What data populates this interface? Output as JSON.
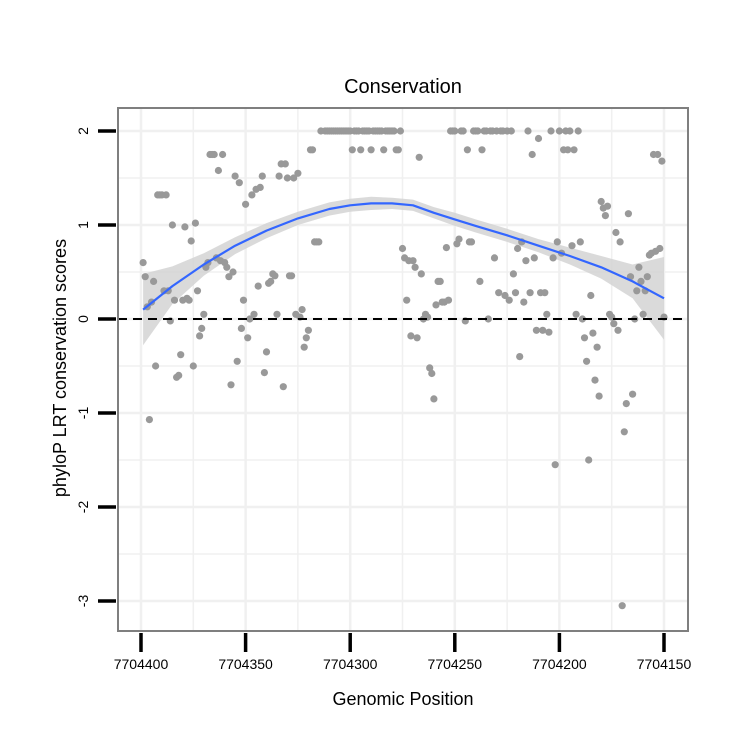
{
  "chart_data": {
    "type": "scatter",
    "title": "Conservation",
    "xlabel": "Genomic Position",
    "ylabel": "phyloP LRT conservation scores",
    "xlim": [
      7704410,
      7704145
    ],
    "x_reversed": true,
    "ylim": [
      -3.3,
      2.2
    ],
    "x_ticks": [
      7704400,
      7704350,
      7704300,
      7704250,
      7704200,
      7704150
    ],
    "x_tick_labels": [
      "7704400",
      "7704350",
      "7704300",
      "7704250",
      "7704200",
      "7704150"
    ],
    "y_ticks": [
      -3,
      -2,
      -1,
      0,
      1,
      2
    ],
    "y_tick_labels": [
      "-3",
      "-2",
      "-1",
      "0",
      "1",
      "2"
    ],
    "grid": true,
    "reference_line": {
      "y": 0,
      "style": "dashed",
      "color": "#000000"
    },
    "colors": {
      "points": "#999999",
      "smooth": "#3366FF",
      "band": "#D3D3D3",
      "grid": "#F0F0F0",
      "border": "#7F7F7F"
    },
    "smooth": {
      "x": [
        7704399,
        7704385,
        7704370,
        7704355,
        7704340,
        7704325,
        7704310,
        7704300,
        7704290,
        7704280,
        7704270,
        7704260,
        7704250,
        7704240,
        7704225,
        7704210,
        7704195,
        7704180,
        7704165,
        7704150
      ],
      "y": [
        0.1,
        0.35,
        0.58,
        0.78,
        0.94,
        1.07,
        1.17,
        1.21,
        1.23,
        1.23,
        1.21,
        1.13,
        1.06,
        0.99,
        0.89,
        0.78,
        0.67,
        0.55,
        0.4,
        0.22
      ],
      "lower": [
        -0.28,
        0.16,
        0.46,
        0.69,
        0.86,
        1.0,
        1.1,
        1.14,
        1.16,
        1.17,
        1.15,
        1.07,
        0.99,
        0.92,
        0.82,
        0.71,
        0.58,
        0.43,
        0.22,
        -0.22
      ],
      "upper": [
        0.48,
        0.56,
        0.7,
        0.87,
        1.02,
        1.14,
        1.24,
        1.28,
        1.3,
        1.29,
        1.27,
        1.19,
        1.13,
        1.06,
        0.96,
        0.85,
        0.76,
        0.67,
        0.58,
        0.66
      ]
    },
    "points": [
      [
        7704399,
        0.6
      ],
      [
        7704398,
        0.45
      ],
      [
        7704397,
        0.13
      ],
      [
        7704396,
        -1.07
      ],
      [
        7704395,
        0.18
      ],
      [
        7704394,
        0.4
      ],
      [
        7704393,
        -0.5
      ],
      [
        7704392,
        1.32
      ],
      [
        7704391,
        1.32
      ],
      [
        7704390,
        1.32
      ],
      [
        7704389,
        0.3
      ],
      [
        7704388,
        1.32
      ],
      [
        7704387,
        0.3
      ],
      [
        7704386,
        -0.02
      ],
      [
        7704385,
        1.0
      ],
      [
        7704384,
        0.2
      ],
      [
        7704383,
        -0.62
      ],
      [
        7704382,
        -0.6
      ],
      [
        7704381,
        -0.38
      ],
      [
        7704380,
        0.2
      ],
      [
        7704379,
        0.98
      ],
      [
        7704378,
        0.22
      ],
      [
        7704377,
        0.2
      ],
      [
        7704376,
        0.83
      ],
      [
        7704375,
        -0.5
      ],
      [
        7704374,
        1.02
      ],
      [
        7704373,
        0.3
      ],
      [
        7704372,
        -0.18
      ],
      [
        7704371,
        -0.1
      ],
      [
        7704370,
        0.05
      ],
      [
        7704369,
        0.55
      ],
      [
        7704368,
        0.6
      ],
      [
        7704367,
        1.75
      ],
      [
        7704366,
        1.75
      ],
      [
        7704365,
        1.75
      ],
      [
        7704364,
        0.65
      ],
      [
        7704363,
        1.58
      ],
      [
        7704362,
        0.62
      ],
      [
        7704361,
        1.75
      ],
      [
        7704360,
        0.6
      ],
      [
        7704359,
        0.55
      ],
      [
        7704358,
        0.45
      ],
      [
        7704357,
        -0.7
      ],
      [
        7704356,
        0.5
      ],
      [
        7704355,
        1.52
      ],
      [
        7704354,
        -0.45
      ],
      [
        7704353,
        1.45
      ],
      [
        7704352,
        -0.1
      ],
      [
        7704351,
        0.2
      ],
      [
        7704350,
        1.22
      ],
      [
        7704349,
        -0.2
      ],
      [
        7704348,
        0.0
      ],
      [
        7704347,
        1.32
      ],
      [
        7704346,
        0.05
      ],
      [
        7704345,
        1.38
      ],
      [
        7704344,
        0.35
      ],
      [
        7704343,
        1.4
      ],
      [
        7704342,
        1.52
      ],
      [
        7704341,
        -0.57
      ],
      [
        7704340,
        -0.35
      ],
      [
        7704339,
        0.38
      ],
      [
        7704338,
        0.4
      ],
      [
        7704337,
        0.48
      ],
      [
        7704336,
        0.46
      ],
      [
        7704335,
        0.05
      ],
      [
        7704334,
        1.52
      ],
      [
        7704333,
        1.65
      ],
      [
        7704332,
        -0.72
      ],
      [
        7704331,
        1.65
      ],
      [
        7704330,
        1.5
      ],
      [
        7704329,
        0.46
      ],
      [
        7704328,
        0.46
      ],
      [
        7704327,
        1.5
      ],
      [
        7704326,
        0.05
      ],
      [
        7704325,
        1.55
      ],
      [
        7704324,
        0.02
      ],
      [
        7704323,
        0.1
      ],
      [
        7704322,
        -0.3
      ],
      [
        7704321,
        -0.2
      ],
      [
        7704320,
        -0.12
      ],
      [
        7704319,
        1.8
      ],
      [
        7704318,
        1.8
      ],
      [
        7704317,
        0.82
      ],
      [
        7704316,
        0.82
      ],
      [
        7704315,
        0.82
      ],
      [
        7704314,
        2.0
      ],
      [
        7704312,
        2.0
      ],
      [
        7704311,
        2.0
      ],
      [
        7704310,
        2.0
      ],
      [
        7704309,
        2.0
      ],
      [
        7704308,
        2.0
      ],
      [
        7704307,
        2.0
      ],
      [
        7704306,
        2.0
      ],
      [
        7704305,
        2.0
      ],
      [
        7704304,
        2.0
      ],
      [
        7704303,
        2.0
      ],
      [
        7704302,
        2.0
      ],
      [
        7704301,
        2.0
      ],
      [
        7704300,
        2.0
      ],
      [
        7704299,
        1.8
      ],
      [
        7704298,
        2.0
      ],
      [
        7704297,
        2.0
      ],
      [
        7704296,
        2.0
      ],
      [
        7704295,
        1.8
      ],
      [
        7704294,
        2.0
      ],
      [
        7704293,
        2.0
      ],
      [
        7704292,
        2.0
      ],
      [
        7704291,
        2.0
      ],
      [
        7704290,
        1.8
      ],
      [
        7704289,
        2.0
      ],
      [
        7704288,
        2.0
      ],
      [
        7704287,
        2.0
      ],
      [
        7704286,
        2.0
      ],
      [
        7704285,
        2.0
      ],
      [
        7704284,
        1.8
      ],
      [
        7704283,
        2.0
      ],
      [
        7704282,
        2.0
      ],
      [
        7704281,
        2.0
      ],
      [
        7704280,
        2.0
      ],
      [
        7704279,
        2.0
      ],
      [
        7704278,
        1.8
      ],
      [
        7704277,
        1.8
      ],
      [
        7704276,
        2.0
      ],
      [
        7704275,
        0.75
      ],
      [
        7704274,
        0.65
      ],
      [
        7704273,
        0.2
      ],
      [
        7704272,
        0.62
      ],
      [
        7704271,
        -0.18
      ],
      [
        7704270,
        0.62
      ],
      [
        7704269,
        0.55
      ],
      [
        7704268,
        -0.2
      ],
      [
        7704267,
        1.72
      ],
      [
        7704266,
        0.48
      ],
      [
        7704265,
        0.0
      ],
      [
        7704264,
        0.05
      ],
      [
        7704263,
        0.02
      ],
      [
        7704262,
        -0.52
      ],
      [
        7704261,
        -0.58
      ],
      [
        7704260,
        -0.85
      ],
      [
        7704259,
        0.15
      ],
      [
        7704258,
        0.4
      ],
      [
        7704257,
        0.4
      ],
      [
        7704256,
        0.18
      ],
      [
        7704255,
        0.18
      ],
      [
        7704254,
        0.76
      ],
      [
        7704253,
        0.2
      ],
      [
        7704252,
        2.0
      ],
      [
        7704251,
        2.0
      ],
      [
        7704250,
        2.0
      ],
      [
        7704249,
        0.8
      ],
      [
        7704248,
        0.85
      ],
      [
        7704247,
        2.0
      ],
      [
        7704246,
        2.0
      ],
      [
        7704245,
        -0.02
      ],
      [
        7704244,
        1.8
      ],
      [
        7704243,
        0.82
      ],
      [
        7704242,
        0.82
      ],
      [
        7704241,
        2.0
      ],
      [
        7704240,
        2.0
      ],
      [
        7704239,
        2.0
      ],
      [
        7704238,
        0.4
      ],
      [
        7704237,
        1.8
      ],
      [
        7704236,
        2.0
      ],
      [
        7704235,
        2.0
      ],
      [
        7704234,
        0.0
      ],
      [
        7704233,
        2.0
      ],
      [
        7704232,
        2.0
      ],
      [
        7704231,
        0.65
      ],
      [
        7704230,
        2.0
      ],
      [
        7704229,
        0.28
      ],
      [
        7704228,
        2.0
      ],
      [
        7704227,
        2.0
      ],
      [
        7704226,
        0.25
      ],
      [
        7704225,
        2.0
      ],
      [
        7704224,
        0.2
      ],
      [
        7704223,
        2.0
      ],
      [
        7704222,
        0.48
      ],
      [
        7704221,
        0.28
      ],
      [
        7704220,
        0.75
      ],
      [
        7704219,
        -0.4
      ],
      [
        7704218,
        0.82
      ],
      [
        7704217,
        0.18
      ],
      [
        7704216,
        0.62
      ],
      [
        7704215,
        2.0
      ],
      [
        7704214,
        0.28
      ],
      [
        7704213,
        1.75
      ],
      [
        7704212,
        0.65
      ],
      [
        7704211,
        -0.12
      ],
      [
        7704210,
        1.92
      ],
      [
        7704209,
        0.28
      ],
      [
        7704208,
        -0.12
      ],
      [
        7704207,
        0.28
      ],
      [
        7704206,
        0.05
      ],
      [
        7704205,
        -0.14
      ],
      [
        7704204,
        2.0
      ],
      [
        7704203,
        0.65
      ],
      [
        7704202,
        -1.55
      ],
      [
        7704201,
        0.82
      ],
      [
        7704200,
        2.0
      ],
      [
        7704199,
        0.7
      ],
      [
        7704198,
        1.8
      ],
      [
        7704197,
        2.0
      ],
      [
        7704196,
        1.8
      ],
      [
        7704195,
        2.0
      ],
      [
        7704194,
        0.78
      ],
      [
        7704193,
        1.8
      ],
      [
        7704192,
        0.05
      ],
      [
        7704191,
        2.0
      ],
      [
        7704190,
        0.82
      ],
      [
        7704189,
        0.0
      ],
      [
        7704188,
        -0.2
      ],
      [
        7704187,
        -0.45
      ],
      [
        7704186,
        -1.5
      ],
      [
        7704185,
        0.25
      ],
      [
        7704184,
        -0.15
      ],
      [
        7704183,
        -0.65
      ],
      [
        7704182,
        -0.3
      ],
      [
        7704181,
        -0.82
      ],
      [
        7704180,
        1.25
      ],
      [
        7704179,
        1.18
      ],
      [
        7704178,
        1.1
      ],
      [
        7704177,
        1.2
      ],
      [
        7704176,
        0.05
      ],
      [
        7704175,
        0.02
      ],
      [
        7704174,
        -0.05
      ],
      [
        7704173,
        0.92
      ],
      [
        7704172,
        -0.12
      ],
      [
        7704171,
        0.82
      ],
      [
        7704170,
        -3.05
      ],
      [
        7704169,
        -1.2
      ],
      [
        7704168,
        -0.9
      ],
      [
        7704167,
        1.12
      ],
      [
        7704166,
        0.45
      ],
      [
        7704165,
        -0.8
      ],
      [
        7704164,
        0.0
      ],
      [
        7704163,
        0.3
      ],
      [
        7704162,
        0.55
      ],
      [
        7704161,
        0.4
      ],
      [
        7704160,
        0.05
      ],
      [
        7704159,
        0.3
      ],
      [
        7704158,
        0.45
      ],
      [
        7704157,
        0.68
      ],
      [
        7704156,
        0.7
      ],
      [
        7704155,
        1.75
      ],
      [
        7704154,
        0.72
      ],
      [
        7704153,
        1.75
      ],
      [
        7704152,
        0.75
      ],
      [
        7704151,
        1.68
      ],
      [
        7704150,
        0.02
      ]
    ]
  }
}
